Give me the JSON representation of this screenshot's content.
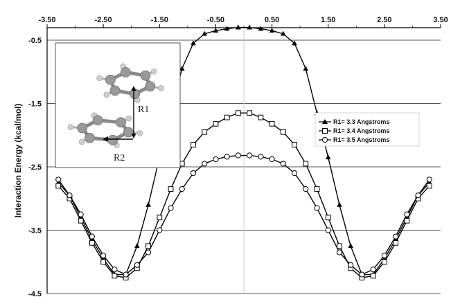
{
  "chart_data": {
    "type": "line",
    "title": "",
    "xlabel": "",
    "ylabel": "Interaction Energy (kcal/mol)",
    "xlim": [
      -3.5,
      3.5
    ],
    "ylim": [
      -4.5,
      -0.5
    ],
    "x_ticks": [
      "-3.50",
      "-2.50",
      "-1.50",
      "-0.50",
      "0.50",
      "1.50",
      "2.50",
      "3.50"
    ],
    "y_ticks": [
      "-0.5",
      "-1.5",
      "-2.5",
      "-3.5",
      "-4.5"
    ],
    "x_axis_position": "top",
    "grid": "horizontal",
    "legend_position": "right",
    "series": [
      {
        "name": "R1= 3.3 Angstroms",
        "marker": "filled-triangle",
        "color": "#000000",
        "x": [
          -3.3,
          -3.1,
          -2.9,
          -2.7,
          -2.5,
          -2.3,
          -2.1,
          -1.9,
          -1.7,
          -1.5,
          -1.3,
          -1.1,
          -0.9,
          -0.7,
          -0.5,
          -0.3,
          -0.1,
          0.1,
          0.3,
          0.5,
          0.7,
          0.9,
          1.1,
          1.3,
          1.5,
          1.7,
          1.9,
          2.1,
          2.3,
          2.5,
          2.7,
          2.9,
          3.1,
          3.3
        ],
        "values": [
          -2.75,
          -2.95,
          -3.3,
          -3.65,
          -3.95,
          -4.2,
          -4.2,
          -3.75,
          -3.1,
          -2.35,
          -1.65,
          -0.95,
          -0.55,
          -0.4,
          -0.35,
          -0.32,
          -0.3,
          -0.3,
          -0.32,
          -0.35,
          -0.4,
          -0.55,
          -0.95,
          -1.65,
          -2.35,
          -3.1,
          -3.75,
          -4.2,
          -4.2,
          -3.95,
          -3.65,
          -3.3,
          -2.95,
          -2.75
        ]
      },
      {
        "name": "R1= 3.4 Angstroms",
        "marker": "open-square",
        "color": "#000000",
        "x": [
          -3.3,
          -3.1,
          -2.9,
          -2.7,
          -2.5,
          -2.3,
          -2.1,
          -1.9,
          -1.7,
          -1.5,
          -1.3,
          -1.1,
          -0.9,
          -0.7,
          -0.5,
          -0.3,
          -0.1,
          0.1,
          0.3,
          0.5,
          0.7,
          0.9,
          1.1,
          1.3,
          1.5,
          1.7,
          1.9,
          2.1,
          2.3,
          2.5,
          2.7,
          2.9,
          3.1,
          3.3
        ],
        "values": [
          -2.8,
          -3.0,
          -3.35,
          -3.7,
          -4.0,
          -4.22,
          -4.25,
          -4.1,
          -3.75,
          -3.3,
          -2.85,
          -2.45,
          -2.15,
          -1.95,
          -1.82,
          -1.72,
          -1.65,
          -1.65,
          -1.72,
          -1.82,
          -1.95,
          -2.15,
          -2.45,
          -2.85,
          -3.3,
          -3.75,
          -4.1,
          -4.25,
          -4.22,
          -4.0,
          -3.7,
          -3.35,
          -3.0,
          -2.8
        ]
      },
      {
        "name": "R1= 3.5 Angstroms",
        "marker": "open-circle",
        "color": "#000000",
        "x": [
          -3.3,
          -3.1,
          -2.9,
          -2.7,
          -2.5,
          -2.3,
          -2.1,
          -1.9,
          -1.7,
          -1.5,
          -1.3,
          -1.1,
          -0.9,
          -0.7,
          -0.5,
          -0.3,
          -0.1,
          0.1,
          0.3,
          0.5,
          0.7,
          0.9,
          1.1,
          1.3,
          1.5,
          1.7,
          1.9,
          2.1,
          2.3,
          2.5,
          2.7,
          2.9,
          3.1,
          3.3
        ],
        "values": [
          -2.7,
          -2.95,
          -3.25,
          -3.6,
          -3.9,
          -4.12,
          -4.2,
          -4.05,
          -3.85,
          -3.5,
          -3.15,
          -2.85,
          -2.6,
          -2.45,
          -2.38,
          -2.34,
          -2.32,
          -2.32,
          -2.34,
          -2.38,
          -2.45,
          -2.6,
          -2.85,
          -3.15,
          -3.5,
          -3.85,
          -4.05,
          -4.2,
          -4.12,
          -3.9,
          -3.6,
          -3.25,
          -2.95,
          -2.7
        ]
      }
    ]
  },
  "inset": {
    "labels": [
      "R1",
      "R2"
    ],
    "atom_color": "#9a9a9a",
    "hydrogen_color": "#cfcfcf"
  }
}
